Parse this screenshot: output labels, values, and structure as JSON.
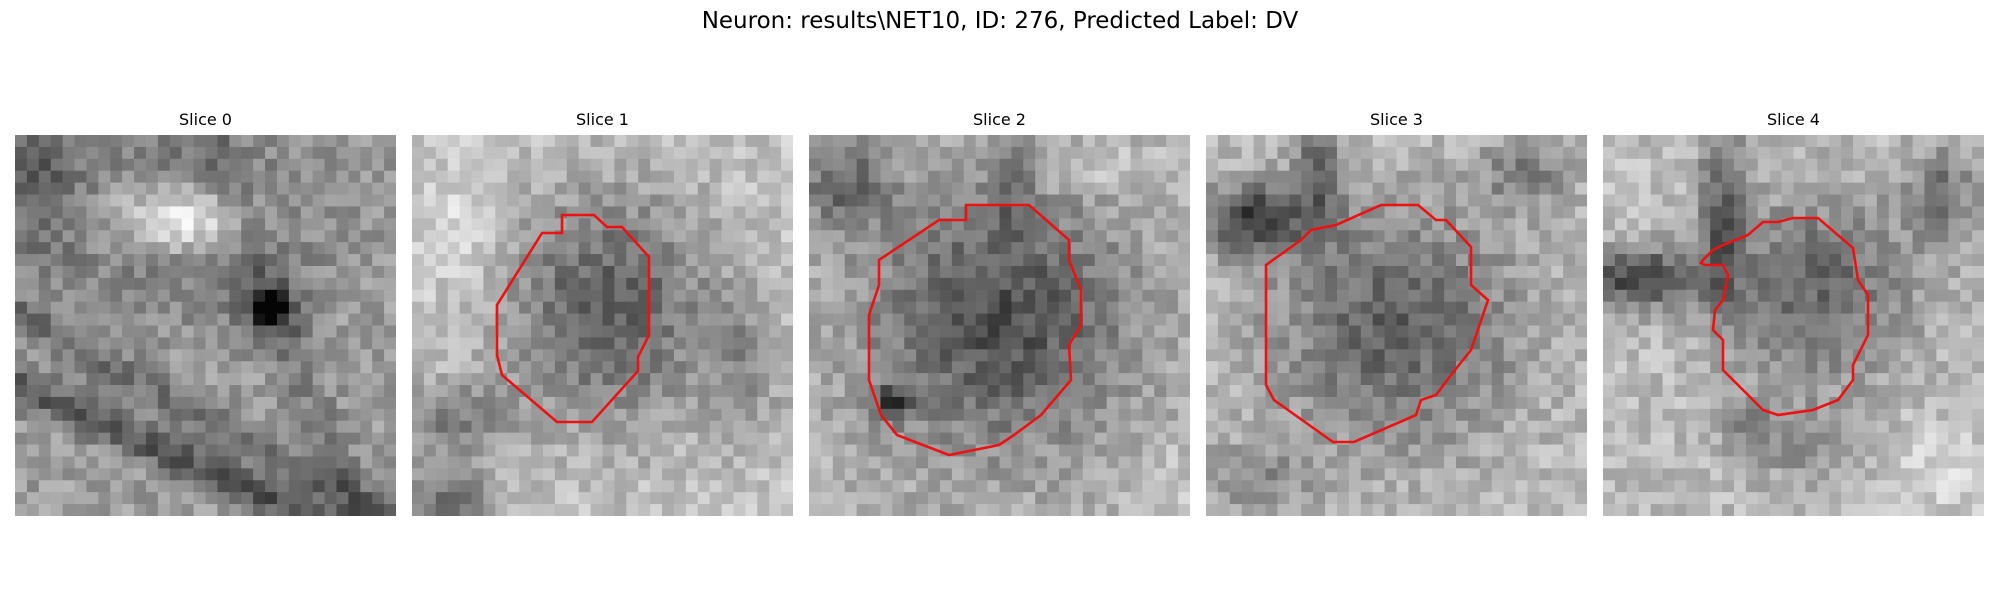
{
  "figure": {
    "title": "Neuron: results\\NET10, ID: 276, Predicted Label: DV"
  },
  "panels": [
    {
      "title": "Slice 0",
      "has_contour": false
    },
    {
      "title": "Slice 1",
      "has_contour": true
    },
    {
      "title": "Slice 2",
      "has_contour": true
    },
    {
      "title": "Slice 3",
      "has_contour": true
    },
    {
      "title": "Slice 4",
      "has_contour": true
    }
  ],
  "colors": {
    "contour": "#ee1111",
    "background": "#ffffff"
  }
}
